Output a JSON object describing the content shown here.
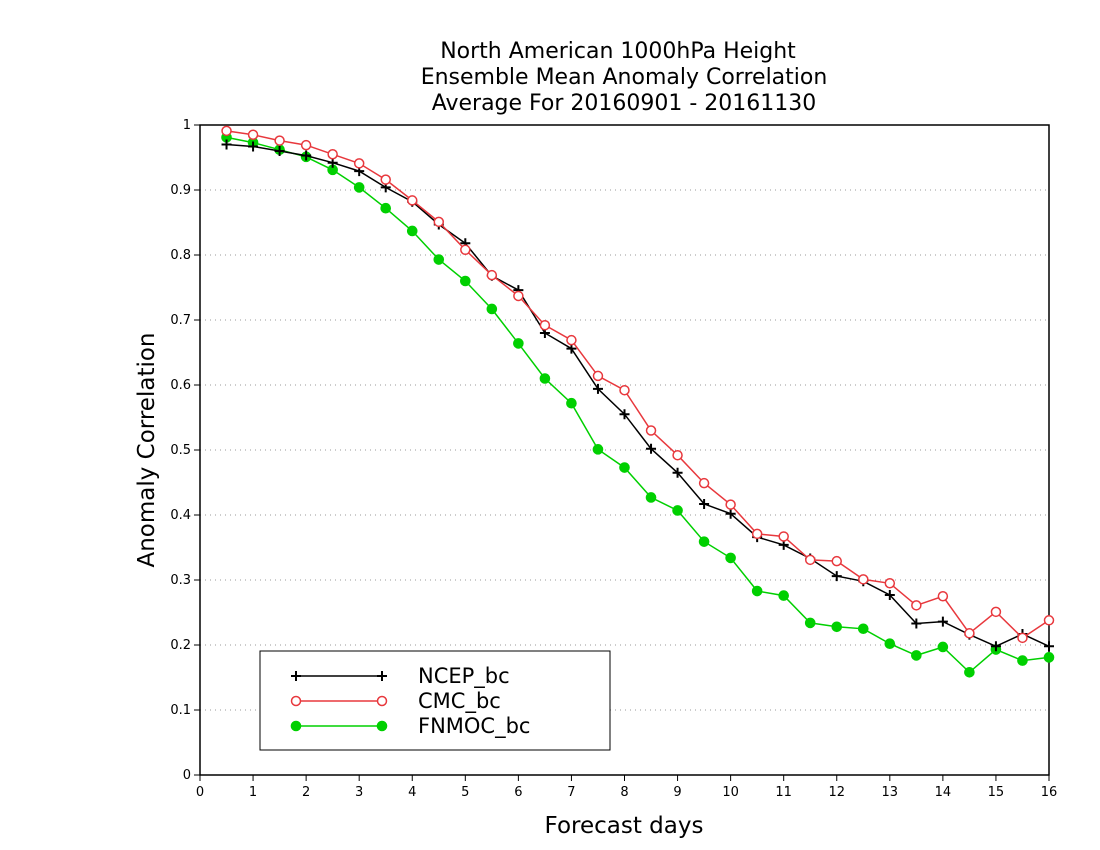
{
  "chart_data": {
    "type": "line",
    "title": [
      "North American 1000hPa Height",
      "Ensemble Mean Anomaly Correlation",
      "Average For 20160901 - 20161130"
    ],
    "xlabel": "Forecast days",
    "ylabel": "Anomaly Correlation",
    "xlim": [
      0,
      16
    ],
    "ylim": [
      0,
      1
    ],
    "xticks": [
      "0",
      "1",
      "2",
      "3",
      "4",
      "5",
      "6",
      "7",
      "8",
      "9",
      "10",
      "11",
      "12",
      "13",
      "14",
      "15",
      "16"
    ],
    "yticks": [
      "0",
      "0.1",
      "0.2",
      "0.3",
      "0.4",
      "0.5",
      "0.6",
      "0.7",
      "0.8",
      "0.9",
      "1"
    ],
    "grid": "horizontal dotted",
    "legend_position": "bottom-left",
    "x": [
      0.5,
      1,
      1.5,
      2,
      2.5,
      3,
      3.5,
      4,
      4.5,
      5,
      5.5,
      6,
      6.5,
      7,
      7.5,
      8,
      8.5,
      9,
      9.5,
      10,
      10.5,
      11,
      11.5,
      12,
      12.5,
      13,
      13.5,
      14,
      14.5,
      15,
      15.5,
      16
    ],
    "series": [
      {
        "name": "NCEP_bc",
        "color": "#000000",
        "marker": "plus",
        "values": [
          0.97,
          0.967,
          0.96,
          0.953,
          0.942,
          0.929,
          0.904,
          0.882,
          0.847,
          0.818,
          0.768,
          0.746,
          0.68,
          0.656,
          0.594,
          0.555,
          0.502,
          0.465,
          0.417,
          0.402,
          0.366,
          0.354,
          0.333,
          0.306,
          0.298,
          0.277,
          0.233,
          0.236,
          0.216,
          0.198,
          0.217,
          0.198
        ]
      },
      {
        "name": "CMC_bc",
        "color": "#e8383d",
        "marker": "open-circle",
        "values": [
          0.991,
          0.985,
          0.976,
          0.969,
          0.955,
          0.941,
          0.916,
          0.884,
          0.851,
          0.808,
          0.769,
          0.737,
          0.692,
          0.669,
          0.614,
          0.592,
          0.53,
          0.492,
          0.449,
          0.416,
          0.371,
          0.367,
          0.331,
          0.329,
          0.301,
          0.295,
          0.261,
          0.275,
          0.218,
          0.251,
          0.211,
          0.238
        ]
      },
      {
        "name": "FNMOC_bc",
        "color": "#00d000",
        "marker": "filled-circle",
        "values": [
          0.981,
          0.973,
          0.962,
          0.951,
          0.931,
          0.904,
          0.872,
          0.837,
          0.793,
          0.76,
          0.717,
          0.664,
          0.61,
          0.572,
          0.501,
          0.473,
          0.427,
          0.407,
          0.359,
          0.334,
          0.283,
          0.276,
          0.234,
          0.228,
          0.225,
          0.202,
          0.184,
          0.197,
          0.158,
          0.193,
          0.176,
          0.181
        ]
      }
    ]
  }
}
